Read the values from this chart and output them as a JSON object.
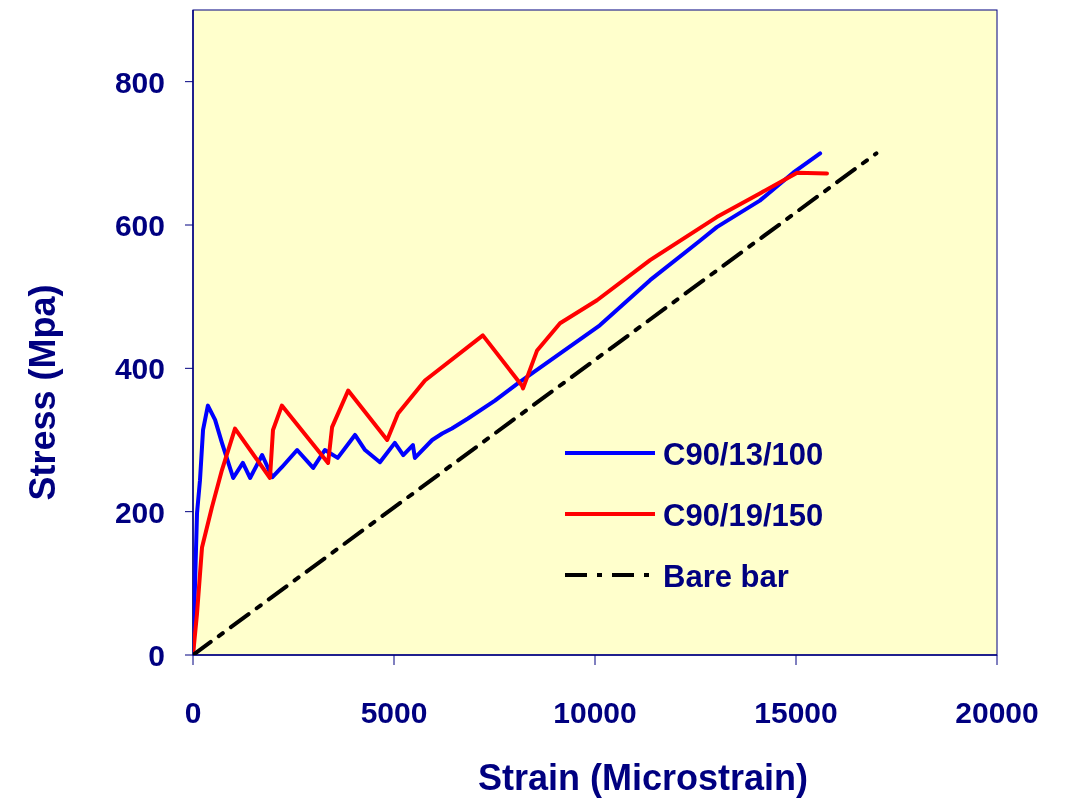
{
  "chart_data": {
    "type": "line",
    "xlabel": "Strain (Microstrain)",
    "ylabel": "Stress (Mpa)",
    "xlim": [
      0,
      20000
    ],
    "xticks": [
      0,
      5000,
      10000,
      15000,
      20000
    ],
    "ylim": [
      0,
      900
    ],
    "yticks": [
      0,
      200,
      400,
      600,
      800
    ],
    "legend": "right",
    "grid": false,
    "series": [
      {
        "name": "C90/13/100",
        "color": "#0000ff",
        "line_style": "solid",
        "x": [
          0,
          100,
          174,
          250,
          370,
          550,
          720,
          1000,
          1240,
          1420,
          1720,
          1970,
          2210,
          2590,
          2990,
          3280,
          3600,
          4030,
          4280,
          4650,
          5020,
          5230,
          5470,
          5520,
          5950,
          6200,
          6440,
          6840,
          7510,
          8080,
          10120,
          11370,
          12610,
          13030,
          14100,
          14930,
          15600
        ],
        "values": [
          0,
          198,
          244,
          314,
          348,
          328,
          296,
          247,
          268,
          247,
          279,
          248,
          262,
          286,
          261,
          286,
          275,
          307,
          286,
          269,
          296,
          279,
          293,
          275,
          300,
          309,
          316,
          330,
          355,
          379,
          460,
          523,
          578,
          597,
          634,
          673,
          700
        ]
      },
      {
        "name": "C90/19/150",
        "color": "#ff0000",
        "line_style": "solid",
        "x": [
          0,
          100,
          224,
          470,
          720,
          1045,
          1915,
          1990,
          2210,
          3360,
          3460,
          3860,
          4830,
          5100,
          5770,
          7210,
          8180,
          8210,
          8560,
          9130,
          10050,
          11370,
          13030,
          14100,
          15030,
          15770
        ],
        "values": [
          0,
          58,
          150,
          206,
          258,
          316,
          247,
          314,
          348,
          268,
          318,
          369,
          300,
          337,
          383,
          446,
          376,
          372,
          425,
          463,
          495,
          551,
          611,
          644,
          673,
          672
        ]
      },
      {
        "name": "Bare bar",
        "color": "#000000",
        "line_style": "dashed",
        "x": [
          0,
          17000
        ],
        "values": [
          0,
          700
        ]
      }
    ]
  }
}
